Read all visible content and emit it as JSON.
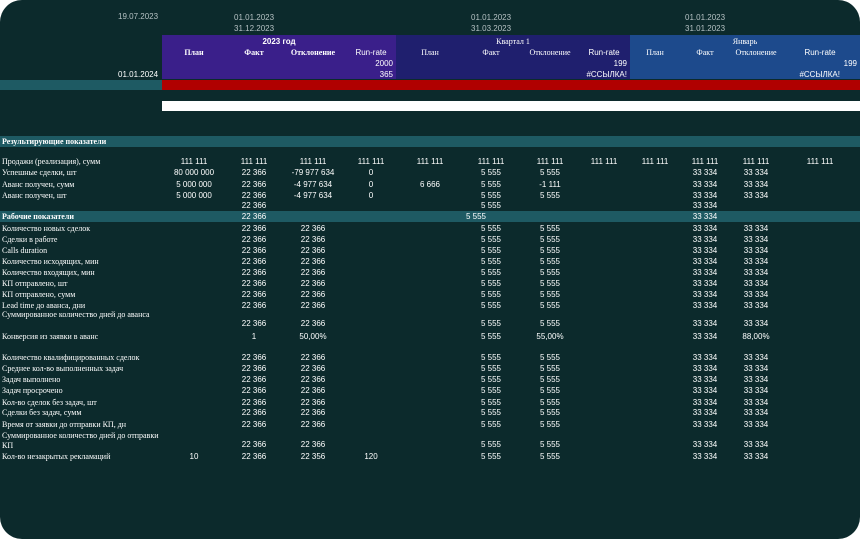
{
  "header": {
    "report_date": "19.07.2023",
    "periods": [
      {
        "from": "01.01.2023",
        "to": "31.12.2023",
        "title": "2023 год"
      },
      {
        "from": "01.01.2023",
        "to": "31.03.2023",
        "title": "Квартал 1"
      },
      {
        "from": "01.01.2023",
        "to": "31.01.2023",
        "title": "Январь"
      }
    ],
    "columns": [
      "План",
      "Факт",
      "Отклонение",
      "Run-rate"
    ],
    "runrate_numbers": [
      "2000",
      "199",
      "199"
    ],
    "days_numbers": [
      "365"
    ],
    "ref_errors": [
      "#ССЫЛКА!",
      "#ССЫЛКА!"
    ],
    "plan_date": "01.01.2024"
  },
  "colors": {
    "background": "#0c2a2c",
    "year_band": "#3a1f8a",
    "quarter_band": "#1f1f6e",
    "month_band": "#1d4a8c",
    "red_bar": "#b00000",
    "teal_band": "#1e5a63"
  },
  "sections": {
    "results_title": "Результирующие показатели",
    "work_title": "Рабочие показатели",
    "work_values": [
      "22 366",
      "5 555",
      "33 334"
    ]
  },
  "rows": [
    {
      "label": "Продажи (реализация), сумм",
      "cells": [
        "111 111",
        "111 111",
        "111 111",
        "111 111",
        "111 111",
        "111 111",
        "111 111",
        "111 111",
        "111 111",
        "111 111",
        "111 111",
        "111 111"
      ]
    },
    {
      "label": "Успешные сделки, шт",
      "cells": [
        "80 000 000",
        "22 366",
        "-79 977 634",
        "0",
        "",
        "5 555",
        "5 555",
        "",
        "",
        "33 334",
        "33 334",
        ""
      ]
    },
    {
      "label": "Аванс получен, сумм",
      "cells": [
        "5 000 000",
        "22 366",
        "-4 977 634",
        "0",
        "6 666",
        "5 555",
        "-1 111",
        "",
        "",
        "33 334",
        "33 334",
        ""
      ]
    },
    {
      "label": "Аванс получен, шт",
      "cells": [
        "5 000 000",
        "22 366",
        "-4 977 634",
        "0",
        "",
        "5 555",
        "5 555",
        "",
        "",
        "33 334",
        "33 334",
        ""
      ]
    },
    {
      "label": "",
      "cells": [
        "",
        "22 366",
        "",
        "",
        "",
        "5 555",
        "",
        "",
        "",
        "33 334",
        "",
        ""
      ]
    },
    {
      "label": "Количество новых сделок",
      "cells": [
        "",
        "22 366",
        "22 366",
        "",
        "",
        "5 555",
        "5 555",
        "",
        "",
        "33 334",
        "33 334",
        ""
      ]
    },
    {
      "label": "Сделки в работе",
      "cells": [
        "",
        "22 366",
        "22 366",
        "",
        "",
        "5 555",
        "5 555",
        "",
        "",
        "33 334",
        "33 334",
        ""
      ]
    },
    {
      "label": "Calls duration",
      "cells": [
        "",
        "22 366",
        "22 366",
        "",
        "",
        "5 555",
        "5 555",
        "",
        "",
        "33 334",
        "33 334",
        ""
      ]
    },
    {
      "label": "Количество исходящих, мин",
      "cells": [
        "",
        "22 366",
        "22 366",
        "",
        "",
        "5 555",
        "5 555",
        "",
        "",
        "33 334",
        "33 334",
        ""
      ]
    },
    {
      "label": "Количество входящих, мин",
      "cells": [
        "",
        "22 366",
        "22 366",
        "",
        "",
        "5 555",
        "5 555",
        "",
        "",
        "33 334",
        "33 334",
        ""
      ]
    },
    {
      "label": "КП отправлено, шт",
      "cells": [
        "",
        "22 366",
        "22 366",
        "",
        "",
        "5 555",
        "5 555",
        "",
        "",
        "33 334",
        "33 334",
        ""
      ]
    },
    {
      "label": "КП отправлено, сумм",
      "cells": [
        "",
        "22 366",
        "22 366",
        "",
        "",
        "5 555",
        "5 555",
        "",
        "",
        "33 334",
        "33 334",
        ""
      ]
    },
    {
      "label": "Lead time до аванса, дни",
      "cells": [
        "",
        "22 366",
        "22 366",
        "",
        "",
        "5 555",
        "5 555",
        "",
        "",
        "33 334",
        "33 334",
        ""
      ]
    },
    {
      "label": "Суммированное количество дней до аванса",
      "cells": [
        "",
        "22 366",
        "22 366",
        "",
        "",
        "5 555",
        "5 555",
        "",
        "",
        "33 334",
        "33 334",
        ""
      ]
    },
    {
      "label": "Конверсия из заявки в аванс",
      "cells": [
        "",
        "1",
        "50,00%",
        "",
        "",
        "5 555",
        "55,00%",
        "",
        "",
        "33 334",
        "88,00%",
        ""
      ]
    },
    {
      "label": "Количество квалифицированных сделок",
      "cells": [
        "",
        "22 366",
        "22 366",
        "",
        "",
        "5 555",
        "5 555",
        "",
        "",
        "33 334",
        "33 334",
        ""
      ]
    },
    {
      "label": "Среднее кол-во выполненных задач",
      "cells": [
        "",
        "22 366",
        "22 366",
        "",
        "",
        "5 555",
        "5 555",
        "",
        "",
        "33 334",
        "33 334",
        ""
      ]
    },
    {
      "label": "Задач выполнено",
      "cells": [
        "",
        "22 366",
        "22 366",
        "",
        "",
        "5 555",
        "5 555",
        "",
        "",
        "33 334",
        "33 334",
        ""
      ]
    },
    {
      "label": "Задач просрочено",
      "cells": [
        "",
        "22 366",
        "22 366",
        "",
        "",
        "5 555",
        "5 555",
        "",
        "",
        "33 334",
        "33 334",
        ""
      ]
    },
    {
      "label": "Кол-во сделок без задач, шт",
      "cells": [
        "",
        "22 366",
        "22 366",
        "",
        "",
        "5 555",
        "5 555",
        "",
        "",
        "33 334",
        "33 334",
        ""
      ]
    },
    {
      "label": "Сделки без задач, сумм",
      "cells": [
        "",
        "22 366",
        "22 366",
        "",
        "",
        "5 555",
        "5 555",
        "",
        "",
        "33 334",
        "33 334",
        ""
      ]
    },
    {
      "label": "Время от заявки до отправки КП, дн",
      "cells": [
        "",
        "22 366",
        "22 366",
        "",
        "",
        "5 555",
        "5 555",
        "",
        "",
        "33 334",
        "33 334",
        ""
      ]
    },
    {
      "label": "Суммированное количество дней до отправки КП",
      "cells": [
        "",
        "22 366",
        "22 366",
        "",
        "",
        "5 555",
        "5 555",
        "",
        "",
        "33 334",
        "33 334",
        ""
      ]
    },
    {
      "label": "Кол-во незакрытых рекламаций",
      "cells": [
        "10",
        "22 366",
        "22 356",
        "120",
        "",
        "5 555",
        "5 555",
        "",
        "",
        "33 334",
        "33 334",
        ""
      ]
    }
  ]
}
